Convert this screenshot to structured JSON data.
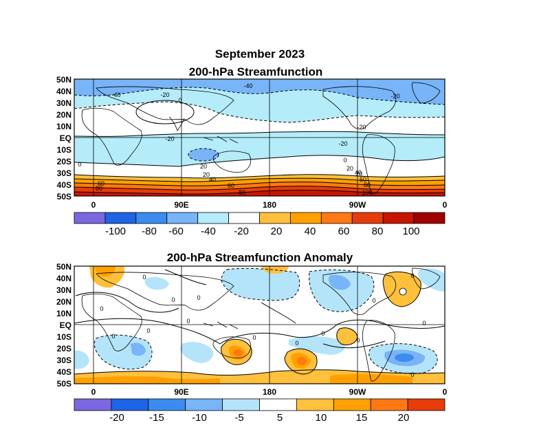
{
  "figure": {
    "title": "September 2023"
  },
  "panels": [
    {
      "id": "streamfunction",
      "title": "200-hPa Streamfunction",
      "lat_labels": [
        "50N",
        "40N",
        "30N",
        "20N",
        "10N",
        "EQ",
        "10S",
        "20S",
        "30S",
        "40S",
        "50S"
      ],
      "lon_labels": [
        "0",
        "90E",
        "180",
        "90W",
        "0"
      ],
      "contour_labels": [
        "-40",
        "-20",
        "0",
        "-40",
        "-20",
        "-20",
        "-20",
        "0",
        "20",
        "20",
        "40",
        "60",
        "80",
        "60",
        "80",
        "-20",
        "0",
        "20",
        "20",
        "40",
        "60",
        "80",
        "100",
        "-20",
        "0",
        "-20",
        "20"
      ],
      "colorbar": {
        "labels": [
          "-100",
          "-80",
          "-60",
          "-40",
          "-20",
          "20",
          "40",
          "60",
          "80",
          "100"
        ],
        "colors": [
          "#7b68e0",
          "#1e64e6",
          "#3c8cf0",
          "#78b4f8",
          "#b4ecfa",
          "#ffffff",
          "#ffc03c",
          "#ffa000",
          "#ff7814",
          "#e63c0a",
          "#c81400",
          "#a00000"
        ]
      }
    },
    {
      "id": "anomaly",
      "title": "200-hPa Streamfunction Anomaly",
      "lat_labels": [
        "50N",
        "40N",
        "30N",
        "20N",
        "10N",
        "EQ",
        "10S",
        "20S",
        "30S",
        "40S",
        "50S"
      ],
      "lon_labels": [
        "0",
        "90E",
        "180",
        "90W",
        "0"
      ],
      "contour_labels": [
        "0",
        "0",
        "0",
        "0",
        "0",
        "0",
        "0",
        "0",
        "0",
        "0",
        "0",
        "0",
        "0",
        "0",
        "0"
      ],
      "colorbar": {
        "labels": [
          "-20",
          "-15",
          "-10",
          "-5",
          "5",
          "10",
          "15",
          "20"
        ],
        "colors": [
          "#7b68e0",
          "#1e64e6",
          "#3c8cf0",
          "#78b4f8",
          "#b4e4fa",
          "#ffffff",
          "#ffc03c",
          "#ffa000",
          "#ff7814",
          "#e63c0a"
        ]
      }
    }
  ]
}
